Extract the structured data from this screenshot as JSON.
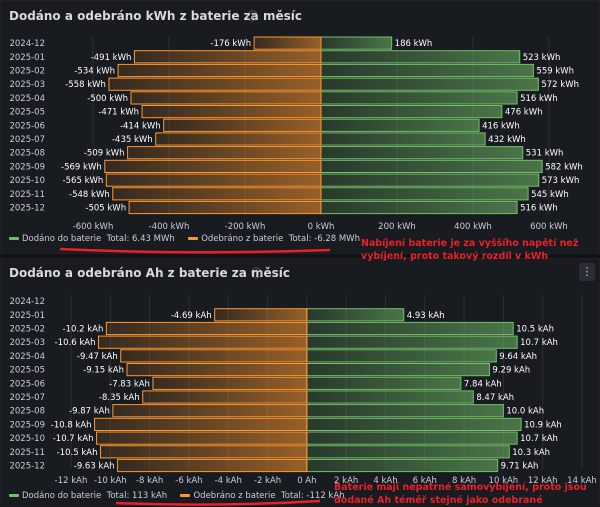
{
  "panels": [
    {
      "title": "Dodáno a odebráno kWh z baterie za měsíc",
      "info_icon": "info-icon",
      "chart_data": {
        "type": "bar",
        "orientation": "horizontal",
        "categories": [
          "2024-12",
          "2025-01",
          "2025-02",
          "2025-03",
          "2025-04",
          "2025-05",
          "2025-06",
          "2025-07",
          "2025-08",
          "2025-09",
          "2025-10",
          "2025-11",
          "2025-12"
        ],
        "series": [
          {
            "name": "Dodáno do baterie",
            "color": "#73bf69",
            "values": [
              186,
              523,
              559,
              572,
              516,
              476,
              416,
              432,
              531,
              582,
              573,
              545,
              516
            ],
            "labels": [
              "186 kWh",
              "523 kWh",
              "559 kWh",
              "572 kWh",
              "516 kWh",
              "476 kWh",
              "416 kWh",
              "432 kWh",
              "531 kWh",
              "582 kWh",
              "573 kWh",
              "545 kWh",
              "516 kWh"
            ]
          },
          {
            "name": "Odebráno z baterie",
            "color": "#ff9830",
            "values": [
              -176,
              -491,
              -534,
              -558,
              -500,
              -471,
              -414,
              -435,
              -509,
              -569,
              -565,
              -548,
              -505
            ],
            "labels": [
              "-176 kWh",
              "-491 kWh",
              "-534 kWh",
              "-558 kWh",
              "-500 kWh",
              "-471 kWh",
              "-414 kWh",
              "-435 kWh",
              "-509 kWh",
              "-569 kWh",
              "-565 kWh",
              "-548 kWh",
              "-505 kWh"
            ]
          }
        ],
        "xlim": [
          -600,
          600
        ],
        "xticks": [
          -600,
          -400,
          -200,
          0,
          200,
          400,
          600
        ],
        "xtick_labels": [
          "-600 kWh",
          "-400 kWh",
          "-200 kWh",
          "0 kWh",
          "200 kWh",
          "400 kWh",
          "600 kWh"
        ]
      },
      "legend": [
        {
          "label": "Dodáno do baterie",
          "total": "Total: 6.43 MWh",
          "color": "#73bf69"
        },
        {
          "label": "Odebráno z baterie",
          "total": "Total: -6.28 MWh",
          "color": "#ff9830"
        }
      ],
      "annotation": "Nabíjení baterie je za vyššího napětí než vybíjení, proto takový rozdíl v kWh"
    },
    {
      "title": "Dodáno a odebráno Ah z baterie za měsíc",
      "info_icon": "info-icon",
      "menu_icon": "⋮",
      "chart_data": {
        "type": "bar",
        "orientation": "horizontal",
        "categories": [
          "2024-12",
          "2025-01",
          "2025-02",
          "2025-03",
          "2025-04",
          "2025-05",
          "2025-06",
          "2025-07",
          "2025-08",
          "2025-09",
          "2025-10",
          "2025-11",
          "2025-12"
        ],
        "series": [
          {
            "name": "Dodáno do baterie",
            "color": "#73bf69",
            "values": [
              null,
              4.93,
              10.5,
              10.7,
              9.64,
              9.29,
              7.84,
              8.47,
              10.0,
              10.9,
              10.7,
              10.3,
              9.71
            ],
            "labels": [
              "",
              "4.93 kAh",
              "10.5 kAh",
              "10.7 kAh",
              "9.64 kAh",
              "9.29 kAh",
              "7.84 kAh",
              "8.47 kAh",
              "10.0 kAh",
              "10.9 kAh",
              "10.7 kAh",
              "10.3 kAh",
              "9.71 kAh"
            ]
          },
          {
            "name": "Odebráno z baterie",
            "color": "#ff9830",
            "values": [
              null,
              -4.69,
              -10.2,
              -10.6,
              -9.47,
              -9.15,
              -7.83,
              -8.35,
              -9.87,
              -10.8,
              -10.7,
              -10.5,
              -9.63
            ],
            "labels": [
              "",
              "-4.69 kAh",
              "-10.2 kAh",
              "-10.6 kAh",
              "-9.47 kAh",
              "-9.15 kAh",
              "-7.83 kAh",
              "-8.35 kAh",
              "-9.87 kAh",
              "-10.8 kAh",
              "-10.7 kAh",
              "-10.5 kAh",
              "-9.63 kAh"
            ]
          }
        ],
        "xlim": [
          -12,
          14
        ],
        "xticks": [
          -12,
          -10,
          -8,
          -6,
          -4,
          -2,
          0,
          2,
          4,
          6,
          8,
          10,
          12,
          14
        ],
        "xtick_labels": [
          "-12 kAh",
          "-10 kAh",
          "-8 kAh",
          "-6 kAh",
          "-4 kAh",
          "-2 kAh",
          "0 Ah",
          "2 kAh",
          "4 kAh",
          "6 kAh",
          "8 kAh",
          "10 kAh",
          "12 kAh",
          "14 kAh"
        ]
      },
      "legend": [
        {
          "label": "Dodáno do baterie",
          "total": "Total: 113 kAh",
          "color": "#73bf69"
        },
        {
          "label": "Odebráno z baterie",
          "total": "Total: -112 kAh",
          "color": "#ff9830"
        }
      ],
      "annotation": "Baterie mají nepatrné samovybíjení, proto jsou dodané Ah téměř stejné jako odebrané"
    }
  ]
}
